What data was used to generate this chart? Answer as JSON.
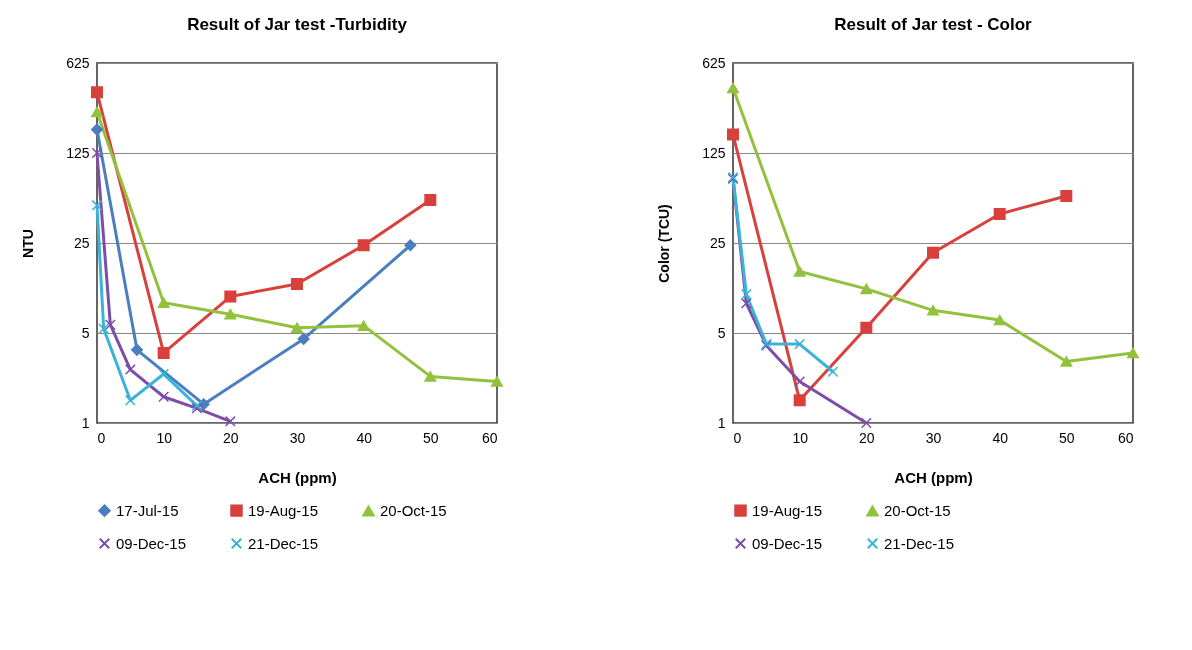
{
  "chart_data": [
    {
      "type": "line",
      "title": "Result of Jar test -Turbidity",
      "xlabel": "ACH (ppm)",
      "ylabel": "NTU",
      "log": true,
      "xlim": [
        0,
        60
      ],
      "xticks": [
        0,
        10,
        20,
        30,
        40,
        50,
        60
      ],
      "ylim": [
        1,
        625
      ],
      "yticks": [
        1,
        5,
        25,
        125,
        625
      ],
      "grid": "y",
      "legend": "bottom",
      "line_style": "solid",
      "series": [
        {
          "name": "17-Jul-15",
          "color": "#4a7ebf",
          "marker": "diamond",
          "x": [
            0,
            6,
            16,
            31,
            47
          ],
          "values": [
            190,
            3.7,
            1.4,
            4.5,
            24
          ]
        },
        {
          "name": "19-Aug-15",
          "color": "#d9403b",
          "marker": "square",
          "x": [
            0,
            10,
            20,
            30,
            40,
            50
          ],
          "values": [
            370,
            3.5,
            9.6,
            12,
            24,
            54
          ]
        },
        {
          "name": "20-Oct-15",
          "color": "#92c13c",
          "marker": "triangle",
          "x": [
            0,
            10,
            20,
            30,
            40,
            50,
            60
          ],
          "values": [
            260,
            8.6,
            7,
            5.5,
            5.7,
            2.3,
            2.1
          ]
        },
        {
          "name": "09-Dec-15",
          "color": "#7d4ea8",
          "marker": "cross",
          "x": [
            0,
            2,
            5,
            10,
            15,
            20
          ],
          "values": [
            125,
            5.8,
            2.6,
            1.6,
            1.3,
            1.03
          ]
        },
        {
          "name": "21-Dec-15",
          "color": "#3bb3d6",
          "marker": "cross",
          "x": [
            0,
            1,
            5,
            10,
            15
          ],
          "values": [
            49,
            5.4,
            1.5,
            2.4,
            1.36
          ]
        }
      ]
    },
    {
      "type": "line",
      "title": "Result of Jar test - Color",
      "xlabel": "ACH (ppm)",
      "ylabel": "Color (TCU)",
      "log": true,
      "xlim": [
        0,
        60
      ],
      "xticks": [
        0,
        10,
        20,
        30,
        40,
        50,
        60
      ],
      "ylim": [
        1,
        625
      ],
      "yticks": [
        1,
        5,
        25,
        125,
        625
      ],
      "grid": "y",
      "legend": "bottom",
      "line_style": "solid",
      "series": [
        {
          "name": "19-Aug-15",
          "color": "#d9403b",
          "marker": "square",
          "x": [
            0,
            10,
            20,
            30,
            40,
            50
          ],
          "values": [
            174,
            1.5,
            5.5,
            21,
            42,
            58
          ]
        },
        {
          "name": "20-Oct-15",
          "color": "#92c13c",
          "marker": "triangle",
          "x": [
            0,
            10,
            20,
            30,
            40,
            50,
            60
          ],
          "values": [
            400,
            15,
            11,
            7.5,
            6.3,
            3,
            3.5
          ]
        },
        {
          "name": "09-Dec-15",
          "color": "#7d4ea8",
          "marker": "cross",
          "x": [
            0,
            2,
            5,
            10,
            20
          ],
          "values": [
            79,
            8.5,
            4,
            2.1,
            1
          ]
        },
        {
          "name": "21-Dec-15",
          "color": "#3bb3d6",
          "marker": "cross",
          "x": [
            0,
            2,
            5,
            10,
            15
          ],
          "values": [
            81,
            10,
            4.1,
            4.1,
            2.5
          ]
        }
      ]
    }
  ]
}
